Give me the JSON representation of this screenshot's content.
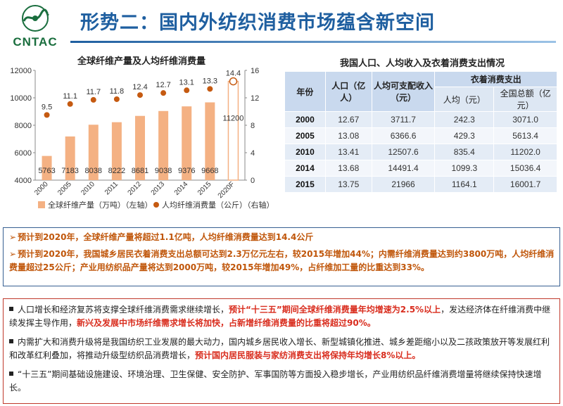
{
  "header": {
    "logo_text": "CNTAC",
    "title": "形势二：国内外纺织消费市场蕴含新空间"
  },
  "chart_data": {
    "type": "bar",
    "title": "全球纤维产量及人均纤维消费量",
    "categories": [
      "2000",
      "2005",
      "2010",
      "2011",
      "2012",
      "2013",
      "2014",
      "2015",
      "2020F"
    ],
    "series": [
      {
        "name": "全球纤维产量（万吨）（左轴）",
        "type": "bar",
        "axis": "left",
        "values": [
          5763,
          7183,
          8038,
          8222,
          8681,
          9038,
          9376,
          9668,
          11200
        ],
        "color": "#f4b183"
      },
      {
        "name": "人均纤维消费量（公斤）（右轴）",
        "type": "scatter",
        "axis": "right",
        "values": [
          9.5,
          11.1,
          11.7,
          11.8,
          12.4,
          12.7,
          13.1,
          13.3,
          14.4
        ],
        "color": "#c55a11"
      }
    ],
    "ylim_left": [
      4000,
      12000
    ],
    "yticks_left": [
      "4000",
      "6000",
      "8000",
      "10000",
      "12000"
    ],
    "ylim_right": [
      0,
      16
    ],
    "yticks_right": [
      "0",
      "4",
      "8",
      "12",
      "16"
    ],
    "legend": "bottom",
    "grid": false,
    "forecast_category": "2020F",
    "forecast_style": "outline"
  },
  "table": {
    "title": "我国人口、人均收入及衣着消费支出情况",
    "headers": {
      "year": "年份",
      "population": "人口（亿人）",
      "income": "人均可支配收入（元）",
      "clothing": "衣着消费支出",
      "per_capita": "人均（元）",
      "total": "全国总额（亿元）"
    },
    "rows": [
      {
        "year": "2000",
        "population": "12.67",
        "income": "3711.7",
        "per_capita": "242.3",
        "total": "3071.0"
      },
      {
        "year": "2005",
        "population": "13.08",
        "income": "6366.6",
        "per_capita": "429.3",
        "total": "5613.4"
      },
      {
        "year": "2010",
        "population": "13.41",
        "income": "12507.6",
        "per_capita": "835.4",
        "total": "11202.0"
      },
      {
        "year": "2014",
        "population": "13.68",
        "income": "14491.4",
        "per_capita": "1099.3",
        "total": "15036.4"
      },
      {
        "year": "2015",
        "population": "13.75",
        "income": "21966",
        "per_capita": "1164.1",
        "total": "16001.7"
      }
    ]
  },
  "forecast": {
    "line1": "预计到2020年，全球纤维产量将超过1.1亿吨，人均纤维消费量达到14.4公斤",
    "line2": "预计到2020年，我国城乡居民衣着消费支出总额可达到2.3万亿元左右，较2015年增加44%；内需纤维消费量达到约3800万吨，人均纤维消费量超过25公斤；产业用纺织品产量将达到2000万吨，较2015年增加49%，占纤维加工量的比重达到33%。"
  },
  "drivers": {
    "item1_a": "人口增长和经济复苏将支撑全球纤维消费需求继续增长，",
    "item1_b": "预计“十三五”期间全球纤维消费量年均增速为2.5%以上",
    "item1_c": "，发达经济体在纤维消费中继续发挥主导作用，",
    "item1_d": "新兴及发展中市场纤维需求增长将加快，占新增纤维消费量的比重将超过90%。",
    "item2_a": "内需扩大和消费升级将是我国纺织工业发展的最大动力，国内城乡居民收入增长、新型城镇化推进、城乡差距缩小以及二孩政策放开等发展红利和改革红利叠加，将推动升级型纺织品消费增长，",
    "item2_b": "预计国内居民服装与家纺消费支出将保持年均增长8%以上。",
    "item3": "“十三五”期间基础设施建设、环境治理、卫生保健、安全防护、军事国防等方面投入稳步增长，产业用纺织品纤维消费增量将继续保持快速增长。"
  },
  "colors": {
    "title_blue": "#1f5fa0",
    "bar": "#f4b183",
    "dot": "#c55a11",
    "highlight_red": "#d92d1e",
    "forecast_orange": "#c0560a"
  }
}
